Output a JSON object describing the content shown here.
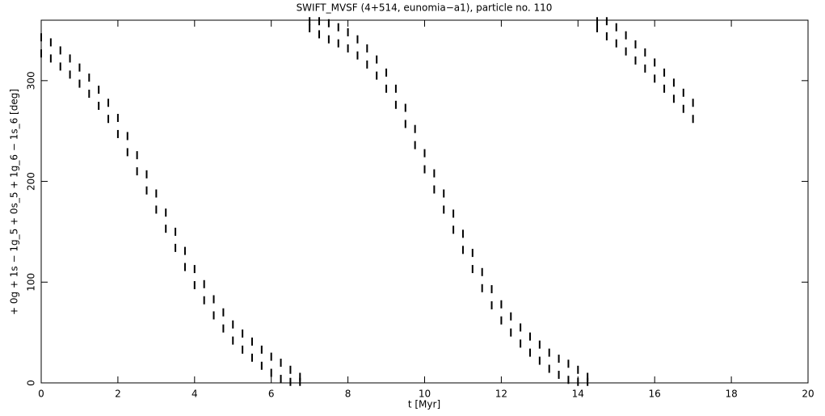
{
  "chart_data": {
    "type": "scatter",
    "title": "SWIFT_MVSF (4+514, eunomia−a1), particle no. 110",
    "x_label": "t [Myr]",
    "y_label": "+ 0g + 1s − 1g_5 + 0s_5 + 1g_6 − 1s_6 [deg]",
    "color": "#000000",
    "xlim": [
      0,
      20
    ],
    "xticks": [
      0,
      2,
      4,
      6,
      8,
      10,
      12,
      14,
      16,
      18,
      20
    ],
    "ylim": [
      0,
      360
    ],
    "yticks": [
      0,
      100,
      200,
      300
    ],
    "x": [
      0,
      0,
      0.25,
      0.25,
      0.5,
      0.5,
      0.75,
      0.75,
      1,
      1,
      1.25,
      1.25,
      1.5,
      1.5,
      1.75,
      1.75,
      2,
      2,
      2.25,
      2.25,
      2.5,
      2.5,
      2.75,
      2.75,
      3,
      3,
      3.25,
      3.25,
      3.5,
      3.5,
      3.75,
      3.75,
      4,
      4,
      4.25,
      4.25,
      4.5,
      4.5,
      4.75,
      4.75,
      5,
      5,
      5.25,
      5.25,
      5.5,
      5.5,
      5.75,
      5.75,
      6,
      6,
      6.25,
      6.25,
      6.5,
      6.5,
      6.75,
      6.75,
      7,
      7,
      7.25,
      7.25,
      7.5,
      7.5,
      7.75,
      7.75,
      8,
      8,
      8.25,
      8.25,
      8.5,
      8.5,
      8.75,
      8.75,
      9,
      9,
      9.25,
      9.25,
      9.5,
      9.5,
      9.75,
      9.75,
      10,
      10,
      10.25,
      10.25,
      10.5,
      10.5,
      10.75,
      10.75,
      11,
      11,
      11.25,
      11.25,
      11.5,
      11.5,
      11.75,
      11.75,
      12,
      12,
      12.25,
      12.25,
      12.5,
      12.5,
      12.75,
      12.75,
      13,
      13,
      13.25,
      13.25,
      13.5,
      13.5,
      13.75,
      13.75,
      14,
      14,
      14.25,
      14.25,
      14.5,
      14.5,
      14.75,
      14.75,
      15,
      15,
      15.25,
      15.25,
      15.5,
      15.5,
      15.75,
      15.75,
      16,
      16,
      16.25,
      16.25,
      16.5,
      16.5,
      16.75,
      16.75,
      17,
      17
    ],
    "y": [
      327,
      343,
      322,
      338,
      314,
      330,
      306,
      322,
      297,
      313,
      287,
      303,
      275,
      291,
      262,
      278,
      247,
      263,
      229,
      245,
      210,
      226,
      191,
      207,
      172,
      188,
      153,
      169,
      134,
      150,
      115,
      131,
      97,
      113,
      82,
      98,
      67,
      83,
      54,
      70,
      42,
      58,
      33,
      49,
      25,
      41,
      17,
      33,
      10,
      26,
      4,
      20,
      1,
      13,
      1,
      6,
      352,
      359,
      346,
      359,
      341,
      357,
      337,
      353,
      332,
      348,
      325,
      341,
      316,
      332,
      305,
      321,
      292,
      308,
      276,
      292,
      257,
      273,
      236,
      252,
      212,
      228,
      192,
      208,
      172,
      188,
      152,
      168,
      132,
      148,
      113,
      129,
      94,
      110,
      77,
      93,
      62,
      78,
      50,
      66,
      39,
      55,
      30,
      46,
      22,
      38,
      14,
      30,
      8,
      24,
      3,
      19,
      1,
      13,
      1,
      6,
      352,
      359,
      344,
      359,
      337,
      353,
      329,
      345,
      320,
      336,
      312,
      328,
      302,
      318,
      292,
      308,
      282,
      298,
      272,
      288,
      262,
      278
    ]
  }
}
